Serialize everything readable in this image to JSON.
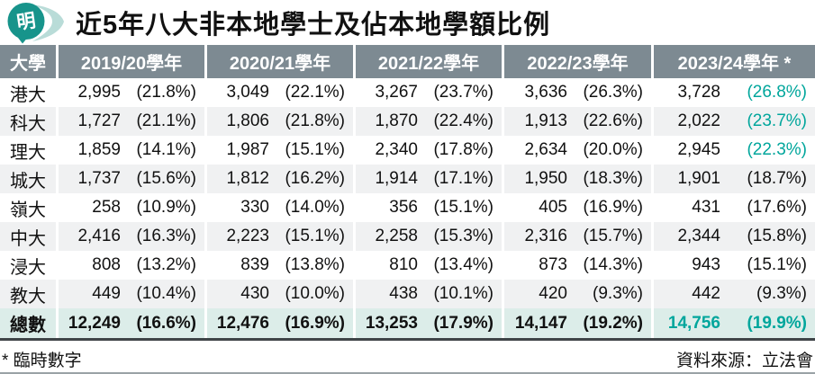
{
  "colors": {
    "teal": "#00a69c",
    "header_bg": "#7d8a92",
    "stripe": "#f0f1f2",
    "total_bg": "#dcede9",
    "logo_teal": "#17948b",
    "logo_swoosh": "#b9dcd8"
  },
  "logo": {
    "text": "明"
  },
  "title": "近5年八大非本地學士及佔本地學額比例",
  "table": {
    "col_headers": [
      "大學",
      "2019/20學年",
      "2020/21學年",
      "2021/22學年",
      "2022/23學年",
      "2023/24學年 *"
    ],
    "rows": [
      {
        "name": "港大",
        "last_teal": true,
        "cells": [
          {
            "v": "2,995",
            "p": "(21.8%)"
          },
          {
            "v": "3,049",
            "p": "(22.1%)"
          },
          {
            "v": "3,267",
            "p": "(23.7%)"
          },
          {
            "v": "3,636",
            "p": "(26.3%)"
          },
          {
            "v": "3,728",
            "p": "(26.8%)"
          }
        ]
      },
      {
        "name": "科大",
        "last_teal": true,
        "cells": [
          {
            "v": "1,727",
            "p": "(21.1%)"
          },
          {
            "v": "1,806",
            "p": "(21.8%)"
          },
          {
            "v": "1,870",
            "p": "(22.4%)"
          },
          {
            "v": "1,913",
            "p": "(22.6%)"
          },
          {
            "v": "2,022",
            "p": "(23.7%)"
          }
        ]
      },
      {
        "name": "理大",
        "last_teal": true,
        "cells": [
          {
            "v": "1,859",
            "p": "(14.1%)"
          },
          {
            "v": "1,987",
            "p": "(15.1%)"
          },
          {
            "v": "2,340",
            "p": "(17.8%)"
          },
          {
            "v": "2,634",
            "p": "(20.0%)"
          },
          {
            "v": "2,945",
            "p": "(22.3%)"
          }
        ]
      },
      {
        "name": "城大",
        "last_teal": false,
        "cells": [
          {
            "v": "1,737",
            "p": "(15.6%)"
          },
          {
            "v": "1,812",
            "p": "(16.2%)"
          },
          {
            "v": "1,914",
            "p": "(17.1%)"
          },
          {
            "v": "1,950",
            "p": "(18.3%)"
          },
          {
            "v": "1,901",
            "p": "(18.7%)"
          }
        ]
      },
      {
        "name": "嶺大",
        "last_teal": false,
        "cells": [
          {
            "v": "258",
            "p": "(10.9%)"
          },
          {
            "v": "330",
            "p": "(14.0%)"
          },
          {
            "v": "356",
            "p": "(15.1%)"
          },
          {
            "v": "405",
            "p": "(16.9%)"
          },
          {
            "v": "431",
            "p": "(17.6%)"
          }
        ]
      },
      {
        "name": "中大",
        "last_teal": false,
        "cells": [
          {
            "v": "2,416",
            "p": "(16.3%)"
          },
          {
            "v": "2,223",
            "p": "(15.1%)"
          },
          {
            "v": "2,258",
            "p": "(15.3%)"
          },
          {
            "v": "2,316",
            "p": "(15.7%)"
          },
          {
            "v": "2,344",
            "p": "(15.8%)"
          }
        ]
      },
      {
        "name": "浸大",
        "last_teal": false,
        "cells": [
          {
            "v": "808",
            "p": "(13.2%)"
          },
          {
            "v": "839",
            "p": "(13.8%)"
          },
          {
            "v": "810",
            "p": "(13.4%)"
          },
          {
            "v": "873",
            "p": "(14.3%)"
          },
          {
            "v": "943",
            "p": "(15.1%)"
          }
        ]
      },
      {
        "name": "教大",
        "last_teal": false,
        "cells": [
          {
            "v": "449",
            "p": "(10.4%)"
          },
          {
            "v": "430",
            "p": "(10.0%)"
          },
          {
            "v": "438",
            "p": "(10.1%)"
          },
          {
            "v": "420",
            "p": "(9.3%)"
          },
          {
            "v": "442",
            "p": "(9.3%)"
          }
        ]
      }
    ],
    "total": {
      "name": "總數",
      "cells": [
        {
          "v": "12,249",
          "p": "(16.6%)"
        },
        {
          "v": "12,476",
          "p": "(16.9%)"
        },
        {
          "v": "13,253",
          "p": "(17.9%)"
        },
        {
          "v": "14,147",
          "p": "(19.2%)"
        },
        {
          "v": "14,756",
          "p": "(19.9%)"
        }
      ]
    }
  },
  "footnote": "* 臨時數字",
  "source": "資料來源：立法會",
  "chart_data": {
    "type": "table",
    "title": "近5年八大非本地學士及佔本地學額比例",
    "columns": [
      "2019/20學年",
      "2020/21學年",
      "2021/22學年",
      "2022/23學年",
      "2023/24學年(臨時數字)"
    ],
    "rows": [
      {
        "university": "港大",
        "values": [
          2995,
          3049,
          3267,
          3636,
          3728
        ],
        "percentages": [
          21.8,
          22.1,
          23.7,
          26.3,
          26.8
        ]
      },
      {
        "university": "科大",
        "values": [
          1727,
          1806,
          1870,
          1913,
          2022
        ],
        "percentages": [
          21.1,
          21.8,
          22.4,
          22.6,
          23.7
        ]
      },
      {
        "university": "理大",
        "values": [
          1859,
          1987,
          2340,
          2634,
          2945
        ],
        "percentages": [
          14.1,
          15.1,
          17.8,
          20.0,
          22.3
        ]
      },
      {
        "university": "城大",
        "values": [
          1737,
          1812,
          1914,
          1950,
          1901
        ],
        "percentages": [
          15.6,
          16.2,
          17.1,
          18.3,
          18.7
        ]
      },
      {
        "university": "嶺大",
        "values": [
          258,
          330,
          356,
          405,
          431
        ],
        "percentages": [
          10.9,
          14.0,
          15.1,
          16.9,
          17.6
        ]
      },
      {
        "university": "中大",
        "values": [
          2416,
          2223,
          2258,
          2316,
          2344
        ],
        "percentages": [
          16.3,
          15.1,
          15.3,
          15.7,
          15.8
        ]
      },
      {
        "university": "浸大",
        "values": [
          808,
          839,
          810,
          873,
          943
        ],
        "percentages": [
          13.2,
          13.8,
          13.4,
          14.3,
          15.1
        ]
      },
      {
        "university": "教大",
        "values": [
          449,
          430,
          438,
          420,
          442
        ],
        "percentages": [
          10.4,
          10.0,
          10.1,
          9.3,
          9.3
        ]
      }
    ],
    "total": {
      "university": "總數",
      "values": [
        12249,
        12476,
        13253,
        14147,
        14756
      ],
      "percentages": [
        16.6,
        16.9,
        17.9,
        19.2,
        19.9
      ]
    },
    "note": "* 臨時數字",
    "source": "資料來源：立法會"
  }
}
